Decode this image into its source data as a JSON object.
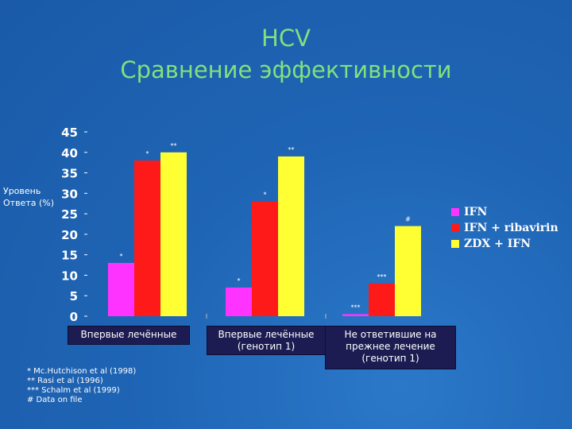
{
  "title": {
    "line1": "HCV",
    "line2": "Сравнение эффективности"
  },
  "colors": {
    "accent_title": "#7ee27e",
    "background": "#1f65b5",
    "category_box": "#1c1c52"
  },
  "chart_data": {
    "type": "bar",
    "ylabel_lines": [
      "Уровень",
      "Ответа (%)"
    ],
    "ylim": [
      0,
      45
    ],
    "yticks": [
      0,
      5,
      10,
      15,
      20,
      25,
      30,
      35,
      40,
      45
    ],
    "grid": false,
    "legend_position": "right",
    "categories": [
      [
        "Впервые лечённые"
      ],
      [
        "Впервые лечённые",
        "(генотип 1)"
      ],
      [
        "Не ответившие на",
        "прежнее лечение",
        "(генотип 1)"
      ]
    ],
    "series": [
      {
        "name": "IFN",
        "color": "#ff33ff",
        "values": [
          13,
          7,
          0.5
        ],
        "annotations": [
          "*",
          "*",
          "***"
        ]
      },
      {
        "name": "IFN + ribavirin",
        "color": "#ff1a1a",
        "values": [
          38,
          28,
          8
        ],
        "annotations": [
          "*",
          "*",
          "***"
        ]
      },
      {
        "name": "ZDX + IFN",
        "color": "#ffff33",
        "values": [
          40,
          39,
          22
        ],
        "annotations": [
          "**",
          "**",
          "#"
        ]
      }
    ]
  },
  "footnotes": [
    "* Mc.Hutchison et al (1998)",
    "** Rasi et al (1996)",
    "*** Schalm et al (1999)",
    "# Data on file"
  ]
}
